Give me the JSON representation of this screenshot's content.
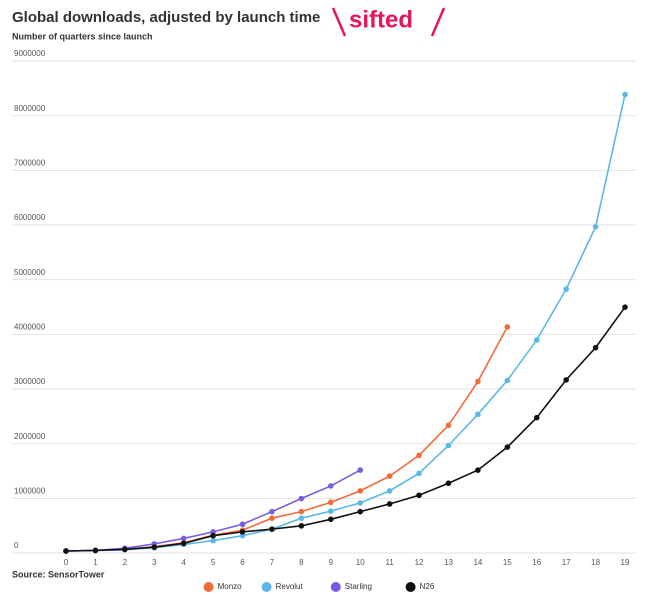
{
  "chart_data": {
    "type": "line",
    "title": "Global downloads, adjusted by launch time",
    "subtitle": "Number of quarters since launch",
    "source": "Source: SensorTower",
    "logo": "sifted",
    "x": [
      0,
      1,
      2,
      3,
      4,
      5,
      6,
      7,
      8,
      9,
      10,
      11,
      12,
      13,
      14,
      15,
      16,
      17,
      18,
      19
    ],
    "xlim": [
      0,
      19
    ],
    "xticks": [
      0,
      1,
      2,
      3,
      4,
      5,
      6,
      7,
      8,
      9,
      10,
      11,
      12,
      13,
      14,
      15,
      16,
      17,
      18,
      19
    ],
    "ylim": [
      0,
      9000000
    ],
    "yticks": [
      0,
      1000000,
      2000000,
      3000000,
      4000000,
      5000000,
      6000000,
      7000000,
      8000000,
      9000000
    ],
    "grid": true,
    "legend": "bottom",
    "series": [
      {
        "name": "Monzo",
        "color": "#f26b3a",
        "values": [
          0,
          10000,
          30000,
          80000,
          150000,
          290000,
          380000,
          600000,
          720000,
          890000,
          1100000,
          1370000,
          1750000,
          2300000,
          3100000,
          4100000,
          null,
          null,
          null,
          null
        ]
      },
      {
        "name": "Revolut",
        "color": "#5bb8e6",
        "values": [
          0,
          10000,
          20000,
          60000,
          120000,
          190000,
          280000,
          400000,
          600000,
          730000,
          880000,
          1100000,
          1420000,
          1930000,
          2500000,
          3120000,
          3860000,
          4790000,
          5930000,
          8350000
        ]
      },
      {
        "name": "Starling",
        "color": "#7b5ce0",
        "values": [
          0,
          10000,
          50000,
          130000,
          230000,
          350000,
          490000,
          720000,
          960000,
          1190000,
          1480000,
          null,
          null,
          null,
          null,
          null,
          null,
          null,
          null,
          null
        ]
      },
      {
        "name": "N26",
        "color": "#111111",
        "values": [
          0,
          10000,
          30000,
          70000,
          140000,
          280000,
          350000,
          400000,
          460000,
          580000,
          720000,
          860000,
          1020000,
          1240000,
          1480000,
          1900000,
          2440000,
          3130000,
          3720000,
          4460000
        ]
      }
    ]
  }
}
